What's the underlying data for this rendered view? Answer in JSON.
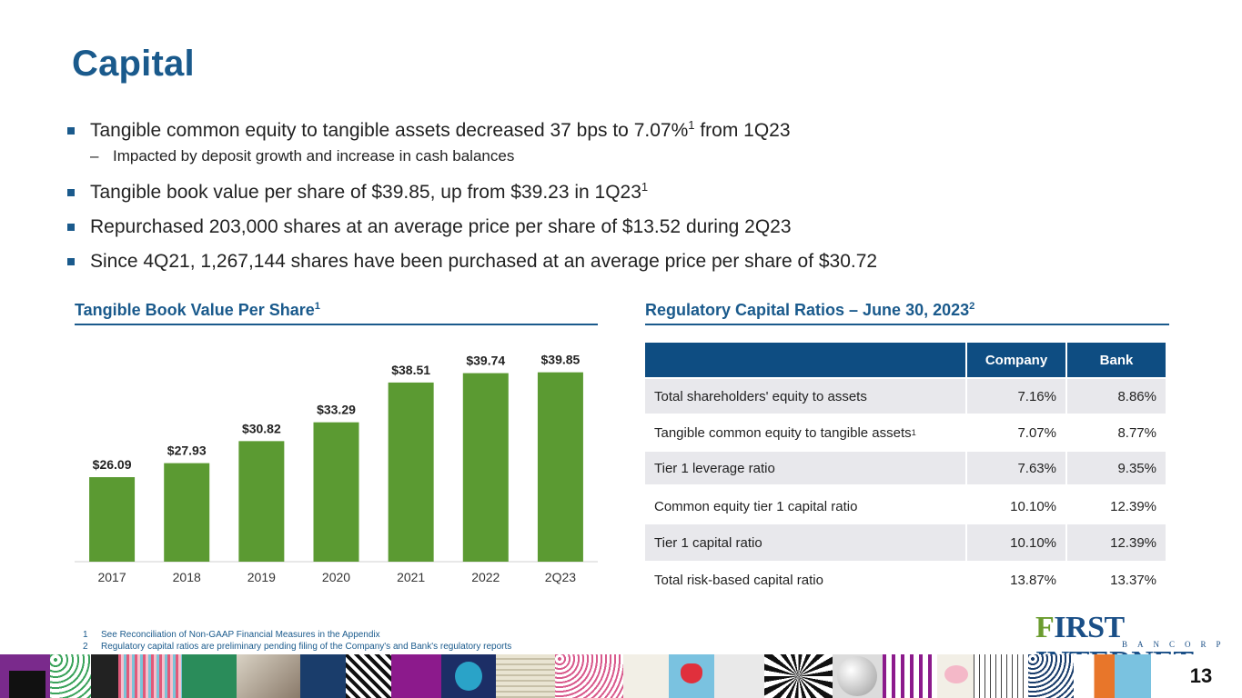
{
  "title": "Capital",
  "bullets": {
    "b1_text": "Tangible common equity to tangible assets decreased 37 bps to 7.07%",
    "b1_sup": "1",
    "b1_tail": " from 1Q23",
    "b1_sub": "Impacted by deposit growth and increase in cash balances",
    "b1_sub_dash": "–",
    "b2_text": "Tangible book value per share of $39.85, up from $39.23 in 1Q23",
    "b2_sup": "1",
    "b3_text": "Repurchased 203,000 shares at an average price per share of $13.52 during 2Q23",
    "b4_text": "Since 4Q21, 1,267,144 shares have been purchased at an average price per share of $30.72"
  },
  "chart_section": {
    "title": "Tangible Book Value Per Share",
    "sup": "1"
  },
  "table_section": {
    "title": "Regulatory Capital Ratios – June 30, 2023",
    "sup": "2"
  },
  "chart_data": {
    "type": "bar",
    "categories": [
      "2017",
      "2018",
      "2019",
      "2020",
      "2021",
      "2022",
      "2Q23"
    ],
    "values": [
      26.09,
      27.93,
      30.82,
      33.29,
      38.51,
      39.74,
      39.85
    ],
    "data_labels": [
      "$26.09",
      "$27.93",
      "$30.82",
      "$33.29",
      "$38.51",
      "$39.74",
      "$39.85"
    ],
    "bar_color": "#5b9a32",
    "ylim": [
      15,
      41
    ],
    "grid": false,
    "legend": "none"
  },
  "table": {
    "headers": [
      "",
      "Company",
      "Bank"
    ],
    "rows": [
      {
        "label": "Total shareholders' equity to assets",
        "sup": "",
        "company": "7.16%",
        "bank": "8.86%"
      },
      {
        "label": "Tangible common equity to tangible assets",
        "sup": "1",
        "company": "7.07%",
        "bank": "8.77%"
      },
      {
        "label": "Tier 1 leverage ratio",
        "sup": "",
        "company": "7.63%",
        "bank": "9.35%"
      },
      {
        "label": "Common equity tier 1 capital ratio",
        "sup": "",
        "company": "10.10%",
        "bank": "12.39%"
      },
      {
        "label": "Tier 1 capital ratio",
        "sup": "",
        "company": "10.10%",
        "bank": "12.39%"
      },
      {
        "label": "Total risk-based capital ratio",
        "sup": "",
        "company": "13.87%",
        "bank": "13.37%"
      }
    ]
  },
  "footnotes": [
    {
      "n": "1",
      "text": "See Reconciliation of Non-GAAP Financial Measures in the Appendix"
    },
    {
      "n": "2",
      "text": "Regulatory capital ratios are preliminary pending filing of the Company's and Bank's regulatory reports"
    }
  ],
  "logo": {
    "first_letter": "F",
    "main": "IRST INTERNET",
    "sub": "BANCORP"
  },
  "page_number": "13",
  "colors": {
    "brand_blue": "#1a5a8c",
    "header_blue": "#0e4d82",
    "bar_green": "#5b9a32",
    "row_shade": "#e8e8ec"
  }
}
